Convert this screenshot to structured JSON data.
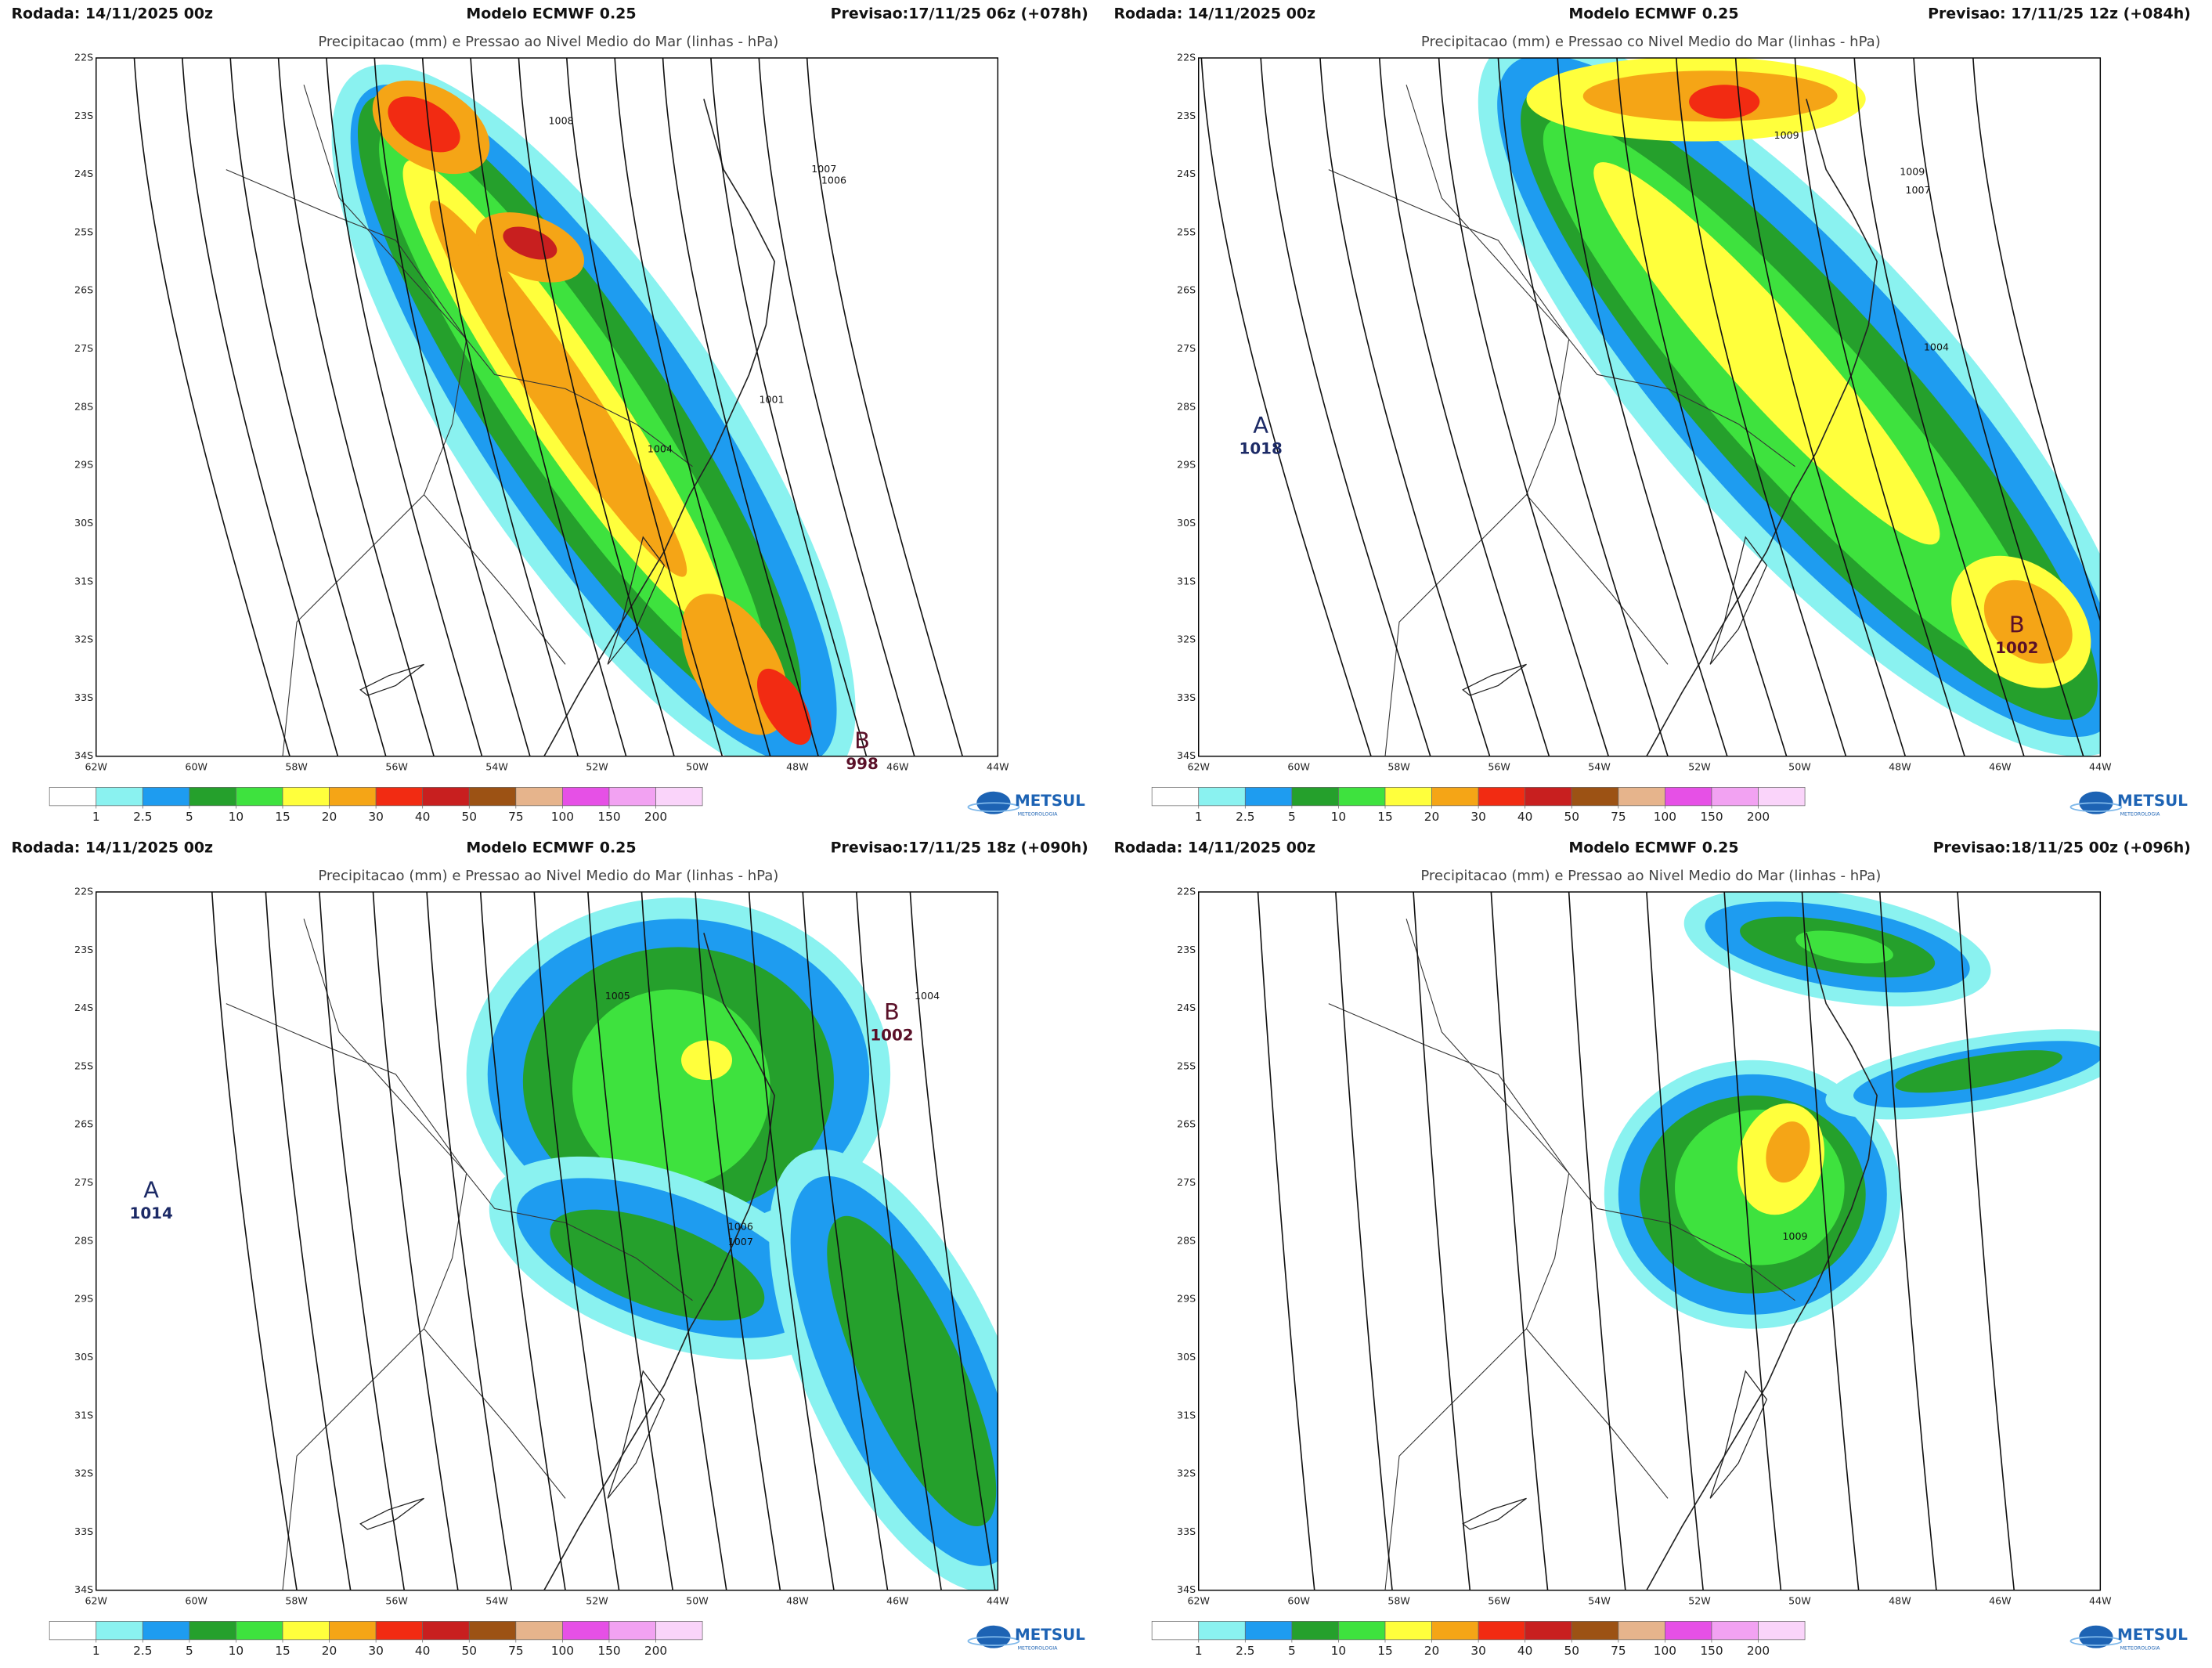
{
  "panels": [
    {
      "run": "Rodada: 14/11/2025 00z",
      "model": "Modelo ECMWF 0.25",
      "forecast": "Previsao:17/11/25 06z (+078h)",
      "title": "Precipitacao (mm) e Pressao ao Nivel Medio do Mar (linhas - hPa)",
      "centers": [
        {
          "letter": "B",
          "value": 998
        }
      ],
      "isobar_labels": [
        1008,
        1007,
        1006,
        1004,
        1001
      ]
    },
    {
      "run": "Rodada: 14/11/2025 00z",
      "model": "Modelo ECMWF 0.25",
      "forecast": "Previsao: 17/11/25 12z (+084h)",
      "title": "Precipitacao (mm) e Pressao co Nivel Medio do Mar (linhas - hPa)",
      "centers": [
        {
          "letter": "A",
          "value": 1018
        },
        {
          "letter": "B",
          "value": 1002
        }
      ],
      "isobar_labels": [
        1009,
        1009,
        1007,
        1004
      ]
    },
    {
      "run": "Rodada: 14/11/2025 00z",
      "model": "Modelo ECMWF 0.25",
      "forecast": "Previsao:17/11/25 18z (+090h)",
      "title": "Precipitacao (mm) e Pressao ao Nivel Medio do Mar (linhas - hPa)",
      "centers": [
        {
          "letter": "A",
          "value": 1014
        },
        {
          "letter": "B",
          "value": 1002
        }
      ],
      "isobar_labels": [
        1005,
        1004,
        1006,
        1007
      ]
    },
    {
      "run": "Rodada: 14/11/2025 00z",
      "model": "Modelo ECMWF 0.25",
      "forecast": "Previsao:18/11/25 00z (+096h)",
      "title": "Precipitacao (mm) e Pressao ao Nivel Medio do Mar (linhas - hPa)",
      "centers": [],
      "isobar_labels": [
        1009
      ]
    }
  ],
  "lat_labels": [
    "22S",
    "23S",
    "24S",
    "25S",
    "26S",
    "27S",
    "28S",
    "29S",
    "30S",
    "31S",
    "32S",
    "33S",
    "34S"
  ],
  "lon_labels": [
    "62W",
    "60W",
    "58W",
    "56W",
    "54W",
    "52W",
    "50W",
    "48W",
    "46W",
    "44W"
  ],
  "colorbar": {
    "levels": [
      1,
      2.5,
      5,
      10,
      15,
      20,
      30,
      40,
      50,
      75,
      100,
      150,
      200
    ],
    "colors": [
      "#ffffff",
      "#8af2f0",
      "#1e9cf0",
      "#25a02c",
      "#3ee23e",
      "#ffff3c",
      "#f5a516",
      "#f22b12",
      "#c81f1f",
      "#9c5214",
      "#e6b48c",
      "#e650e6",
      "#f2a2f2",
      "#fad4fa"
    ]
  },
  "logo": {
    "name": "METSUL",
    "tagline": "METEOROLOGIA"
  }
}
